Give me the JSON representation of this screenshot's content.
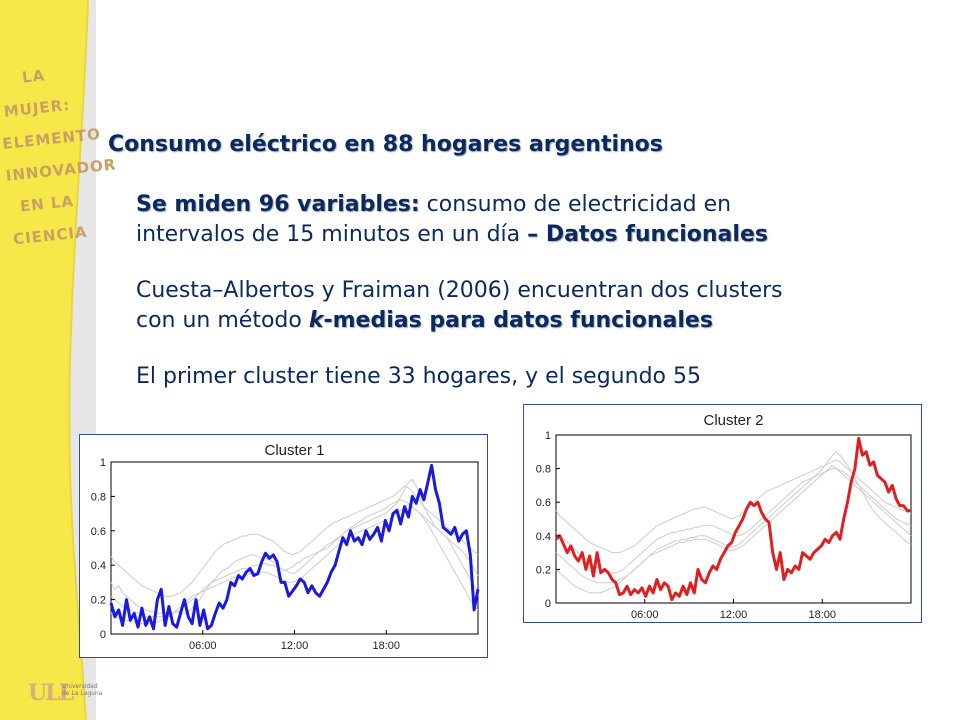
{
  "banner": {
    "lines": [
      "LA",
      "MUJER:",
      "ELEMENTO",
      "INNOVADOR",
      "EN LA",
      "CIENCIA"
    ],
    "logo_text": "ULL",
    "logo_sub": [
      "Universidad",
      "de La Laguna"
    ],
    "banner_color": "#f7e84a"
  },
  "slide": {
    "title": "Consumo eléctrico en 88 hogares argentinos",
    "p1_bold": "Se miden 96 variables:",
    "p1_rest": " consumo de electricidad en",
    "p1_line2": "intervalos de 15 minutos en un día ",
    "p1_bold2": "– Datos funcionales",
    "p2_line1": "Cuesta–Albertos y Fraiman (2006) encuentran dos clusters",
    "p2_line2a": "con un método ",
    "p2_italic": "k",
    "p2_bold": "-medias para datos funcionales",
    "p3": "El primer cluster tiene 33 hogares, y el segundo 55"
  },
  "chart_data": [
    {
      "type": "line",
      "title": "Cluster 1",
      "xlabel": "",
      "ylabel": "",
      "xticks": [
        "06:00",
        "12:00",
        "18:00"
      ],
      "yticks": [
        "0",
        "0.2",
        "0.4",
        "0.6",
        "0.8",
        "1"
      ],
      "ylim": [
        0,
        1
      ],
      "grid": false,
      "highlight_color": "#1a1adf",
      "background_color": "#cccccc",
      "series": [
        {
          "values": [
            0.18,
            0.1,
            0.14,
            0.05,
            0.2,
            0.08,
            0.12,
            0.04,
            0.15,
            0.05,
            0.1,
            0.03,
            0.2,
            0.26,
            0.05,
            0.16,
            0.06,
            0.04,
            0.12,
            0.2,
            0.1,
            0.06,
            0.2,
            0.05,
            0.14,
            0.03,
            0.05,
            0.12,
            0.18,
            0.15,
            0.2,
            0.3,
            0.28,
            0.34,
            0.32,
            0.36,
            0.38,
            0.34,
            0.35,
            0.42,
            0.47,
            0.44,
            0.46,
            0.42,
            0.3,
            0.3,
            0.22,
            0.25,
            0.28,
            0.32,
            0.3,
            0.24,
            0.28,
            0.24,
            0.22,
            0.26,
            0.3,
            0.36,
            0.4,
            0.48,
            0.56,
            0.52,
            0.6,
            0.54,
            0.56,
            0.52,
            0.6,
            0.55,
            0.58,
            0.62,
            0.54,
            0.66,
            0.6,
            0.7,
            0.72,
            0.64,
            0.74,
            0.68,
            0.8,
            0.76,
            0.84,
            0.78,
            0.88,
            0.98,
            0.84,
            0.76,
            0.62,
            0.6,
            0.58,
            0.62,
            0.54,
            0.58,
            0.6,
            0.46,
            0.14,
            0.26
          ]
        },
        {
          "values": [
            0.3,
            0.26,
            0.28,
            0.24,
            0.22,
            0.2,
            0.18,
            0.16,
            0.15,
            0.14,
            0.13,
            0.13,
            0.12,
            0.12,
            0.12,
            0.13,
            0.12,
            0.13,
            0.12,
            0.12,
            0.13,
            0.15,
            0.18,
            0.2,
            0.24,
            0.27,
            0.3,
            0.32,
            0.35,
            0.37,
            0.38,
            0.4,
            0.42,
            0.43,
            0.44,
            0.45,
            0.46,
            0.46,
            0.45,
            0.44,
            0.44,
            0.43,
            0.42,
            0.4,
            0.38,
            0.37,
            0.38,
            0.39,
            0.41,
            0.42,
            0.44,
            0.45,
            0.46,
            0.47,
            0.48,
            0.49,
            0.5,
            0.52,
            0.54,
            0.56,
            0.58,
            0.6,
            0.62,
            0.63,
            0.65,
            0.66,
            0.68,
            0.69,
            0.7,
            0.71,
            0.72,
            0.73,
            0.75,
            0.76,
            0.77,
            0.78,
            0.77,
            0.76,
            0.74,
            0.72,
            0.7,
            0.68,
            0.66,
            0.64,
            0.62,
            0.6,
            0.58,
            0.56,
            0.54,
            0.52,
            0.5,
            0.48,
            0.45,
            0.42,
            0.38,
            0.34
          ]
        },
        {
          "values": [
            0.22,
            0.2,
            0.18,
            0.16,
            0.15,
            0.14,
            0.13,
            0.12,
            0.11,
            0.1,
            0.1,
            0.1,
            0.1,
            0.1,
            0.1,
            0.11,
            0.12,
            0.13,
            0.14,
            0.16,
            0.18,
            0.2,
            0.22,
            0.24,
            0.26,
            0.28,
            0.3,
            0.31,
            0.32,
            0.33,
            0.34,
            0.35,
            0.36,
            0.37,
            0.38,
            0.38,
            0.39,
            0.4,
            0.4,
            0.41,
            0.41,
            0.4,
            0.4,
            0.39,
            0.38,
            0.37,
            0.36,
            0.35,
            0.36,
            0.38,
            0.4,
            0.42,
            0.44,
            0.46,
            0.48,
            0.5,
            0.52,
            0.53,
            0.55,
            0.56,
            0.58,
            0.6,
            0.61,
            0.62,
            0.63,
            0.64,
            0.65,
            0.66,
            0.67,
            0.68,
            0.69,
            0.7,
            0.72,
            0.74,
            0.76,
            0.8,
            0.84,
            0.88,
            0.9,
            0.86,
            0.8,
            0.74,
            0.7,
            0.66,
            0.62,
            0.6,
            0.58,
            0.56,
            0.52,
            0.48,
            0.44,
            0.4,
            0.36,
            0.32,
            0.28,
            0.25
          ]
        },
        {
          "values": [
            0.45,
            0.42,
            0.4,
            0.38,
            0.36,
            0.34,
            0.32,
            0.3,
            0.28,
            0.27,
            0.26,
            0.25,
            0.24,
            0.23,
            0.22,
            0.22,
            0.22,
            0.23,
            0.24,
            0.26,
            0.28,
            0.3,
            0.33,
            0.36,
            0.39,
            0.42,
            0.45,
            0.48,
            0.5,
            0.52,
            0.53,
            0.54,
            0.55,
            0.56,
            0.57,
            0.57,
            0.58,
            0.58,
            0.58,
            0.57,
            0.56,
            0.55,
            0.54,
            0.52,
            0.5,
            0.48,
            0.47,
            0.46,
            0.47,
            0.48,
            0.5,
            0.52,
            0.54,
            0.56,
            0.58,
            0.6,
            0.62,
            0.64,
            0.65,
            0.66,
            0.67,
            0.68,
            0.69,
            0.7,
            0.71,
            0.72,
            0.73,
            0.74,
            0.75,
            0.76,
            0.77,
            0.78,
            0.79,
            0.8,
            0.82,
            0.84,
            0.86,
            0.85,
            0.83,
            0.8,
            0.77,
            0.74,
            0.72,
            0.7,
            0.68,
            0.66,
            0.64,
            0.62,
            0.6,
            0.58,
            0.56,
            0.54,
            0.52,
            0.5,
            0.48,
            0.46
          ]
        },
        {
          "values": [
            0.12,
            0.1,
            0.09,
            0.08,
            0.08,
            0.07,
            0.07,
            0.06,
            0.06,
            0.06,
            0.06,
            0.06,
            0.07,
            0.08,
            0.09,
            0.1,
            0.12,
            0.14,
            0.16,
            0.18,
            0.2,
            0.22,
            0.23,
            0.24,
            0.25,
            0.26,
            0.27,
            0.28,
            0.29,
            0.3,
            0.31,
            0.32,
            0.33,
            0.33,
            0.34,
            0.34,
            0.35,
            0.35,
            0.36,
            0.36,
            0.36,
            0.35,
            0.34,
            0.33,
            0.32,
            0.31,
            0.3,
            0.3,
            0.31,
            0.32,
            0.34,
            0.36,
            0.38,
            0.4,
            0.42,
            0.44,
            0.46,
            0.48,
            0.5,
            0.52,
            0.54,
            0.56,
            0.57,
            0.58,
            0.59,
            0.6,
            0.61,
            0.62,
            0.63,
            0.64,
            0.65,
            0.66,
            0.67,
            0.68,
            0.7,
            0.72,
            0.74,
            0.75,
            0.74,
            0.72,
            0.7,
            0.67,
            0.64,
            0.6,
            0.56,
            0.52,
            0.48,
            0.44,
            0.4,
            0.36,
            0.32,
            0.28,
            0.24,
            0.2,
            0.16,
            0.14
          ]
        }
      ]
    },
    {
      "type": "line",
      "title": "Cluster 2",
      "xlabel": "",
      "ylabel": "",
      "xticks": [
        "06:00",
        "12:00",
        "18:00"
      ],
      "yticks": [
        "0",
        "0.2",
        "0.4",
        "0.6",
        "0.8",
        "1"
      ],
      "ylim": [
        0,
        1
      ],
      "grid": false,
      "highlight_color": "#e02020",
      "background_color": "#cccccc",
      "series": [
        {
          "values": [
            0.38,
            0.4,
            0.35,
            0.3,
            0.34,
            0.28,
            0.25,
            0.3,
            0.2,
            0.28,
            0.16,
            0.3,
            0.18,
            0.2,
            0.18,
            0.14,
            0.12,
            0.05,
            0.06,
            0.1,
            0.05,
            0.08,
            0.06,
            0.09,
            0.04,
            0.1,
            0.06,
            0.14,
            0.08,
            0.12,
            0.1,
            0.02,
            0.06,
            0.04,
            0.1,
            0.05,
            0.12,
            0.06,
            0.2,
            0.14,
            0.12,
            0.18,
            0.22,
            0.2,
            0.26,
            0.3,
            0.34,
            0.36,
            0.42,
            0.46,
            0.5,
            0.56,
            0.6,
            0.58,
            0.6,
            0.54,
            0.5,
            0.48,
            0.3,
            0.2,
            0.3,
            0.14,
            0.2,
            0.18,
            0.22,
            0.2,
            0.3,
            0.28,
            0.26,
            0.3,
            0.32,
            0.34,
            0.38,
            0.36,
            0.4,
            0.42,
            0.38,
            0.5,
            0.6,
            0.72,
            0.8,
            0.98,
            0.88,
            0.9,
            0.82,
            0.84,
            0.76,
            0.74,
            0.72,
            0.66,
            0.7,
            0.62,
            0.58,
            0.58,
            0.55,
            0.55
          ]
        },
        {
          "values": [
            0.42,
            0.4,
            0.38,
            0.36,
            0.34,
            0.32,
            0.3,
            0.28,
            0.26,
            0.24,
            0.22,
            0.21,
            0.2,
            0.19,
            0.18,
            0.18,
            0.18,
            0.19,
            0.2,
            0.22,
            0.24,
            0.26,
            0.28,
            0.3,
            0.32,
            0.34,
            0.36,
            0.38,
            0.39,
            0.4,
            0.41,
            0.42,
            0.42,
            0.43,
            0.43,
            0.44,
            0.44,
            0.45,
            0.45,
            0.46,
            0.46,
            0.46,
            0.46,
            0.45,
            0.44,
            0.43,
            0.42,
            0.41,
            0.4,
            0.4,
            0.41,
            0.42,
            0.44,
            0.46,
            0.48,
            0.5,
            0.52,
            0.54,
            0.56,
            0.58,
            0.6,
            0.62,
            0.64,
            0.66,
            0.68,
            0.7,
            0.72,
            0.73,
            0.74,
            0.75,
            0.76,
            0.77,
            0.78,
            0.79,
            0.8,
            0.8,
            0.79,
            0.78,
            0.76,
            0.74,
            0.72,
            0.7,
            0.68,
            0.66,
            0.64,
            0.62,
            0.6,
            0.58,
            0.56,
            0.54,
            0.52,
            0.5,
            0.49,
            0.48,
            0.47,
            0.46
          ]
        },
        {
          "values": [
            0.3,
            0.28,
            0.26,
            0.24,
            0.22,
            0.2,
            0.18,
            0.16,
            0.15,
            0.14,
            0.13,
            0.12,
            0.12,
            0.12,
            0.12,
            0.12,
            0.13,
            0.14,
            0.15,
            0.16,
            0.18,
            0.2,
            0.22,
            0.24,
            0.26,
            0.28,
            0.3,
            0.32,
            0.33,
            0.34,
            0.35,
            0.36,
            0.37,
            0.37,
            0.38,
            0.38,
            0.39,
            0.39,
            0.4,
            0.4,
            0.4,
            0.39,
            0.38,
            0.37,
            0.36,
            0.35,
            0.34,
            0.33,
            0.34,
            0.35,
            0.37,
            0.39,
            0.41,
            0.43,
            0.45,
            0.47,
            0.49,
            0.51,
            0.53,
            0.55,
            0.57,
            0.59,
            0.61,
            0.63,
            0.65,
            0.67,
            0.69,
            0.71,
            0.73,
            0.75,
            0.77,
            0.79,
            0.82,
            0.85,
            0.88,
            0.9,
            0.88,
            0.85,
            0.82,
            0.78,
            0.74,
            0.7,
            0.66,
            0.62,
            0.58,
            0.55,
            0.52,
            0.5,
            0.48,
            0.46,
            0.44,
            0.42,
            0.4,
            0.38,
            0.36,
            0.35
          ]
        },
        {
          "values": [
            0.55,
            0.52,
            0.5,
            0.48,
            0.46,
            0.44,
            0.42,
            0.4,
            0.38,
            0.36,
            0.35,
            0.34,
            0.33,
            0.32,
            0.31,
            0.3,
            0.3,
            0.3,
            0.31,
            0.32,
            0.33,
            0.34,
            0.36,
            0.38,
            0.4,
            0.42,
            0.44,
            0.46,
            0.47,
            0.48,
            0.49,
            0.5,
            0.51,
            0.52,
            0.53,
            0.54,
            0.55,
            0.56,
            0.56,
            0.57,
            0.57,
            0.56,
            0.55,
            0.54,
            0.53,
            0.52,
            0.51,
            0.5,
            0.51,
            0.52,
            0.54,
            0.56,
            0.58,
            0.6,
            0.62,
            0.64,
            0.66,
            0.67,
            0.68,
            0.69,
            0.7,
            0.71,
            0.72,
            0.73,
            0.74,
            0.75,
            0.76,
            0.77,
            0.78,
            0.79,
            0.8,
            0.81,
            0.82,
            0.83,
            0.84,
            0.85,
            0.84,
            0.82,
            0.8,
            0.78,
            0.76,
            0.74,
            0.72,
            0.7,
            0.68,
            0.66,
            0.64,
            0.62,
            0.6,
            0.59,
            0.58,
            0.57,
            0.56,
            0.55,
            0.54,
            0.53
          ]
        },
        {
          "values": [
            0.2,
            0.18,
            0.16,
            0.14,
            0.12,
            0.1,
            0.09,
            0.08,
            0.07,
            0.06,
            0.06,
            0.06,
            0.06,
            0.07,
            0.08,
            0.09,
            0.1,
            0.12,
            0.14,
            0.16,
            0.18,
            0.2,
            0.22,
            0.24,
            0.26,
            0.28,
            0.29,
            0.3,
            0.31,
            0.32,
            0.33,
            0.34,
            0.35,
            0.36,
            0.36,
            0.37,
            0.37,
            0.38,
            0.38,
            0.38,
            0.38,
            0.37,
            0.36,
            0.35,
            0.34,
            0.33,
            0.32,
            0.31,
            0.32,
            0.33,
            0.34,
            0.36,
            0.38,
            0.4,
            0.42,
            0.44,
            0.46,
            0.48,
            0.5,
            0.52,
            0.54,
            0.56,
            0.58,
            0.6,
            0.62,
            0.64,
            0.66,
            0.68,
            0.7,
            0.72,
            0.74,
            0.76,
            0.78,
            0.8,
            0.82,
            0.8,
            0.78,
            0.76,
            0.74,
            0.72,
            0.7,
            0.68,
            0.66,
            0.64,
            0.62,
            0.6,
            0.58,
            0.56,
            0.54,
            0.52,
            0.5,
            0.48,
            0.46,
            0.44,
            0.42,
            0.4
          ]
        }
      ]
    }
  ]
}
